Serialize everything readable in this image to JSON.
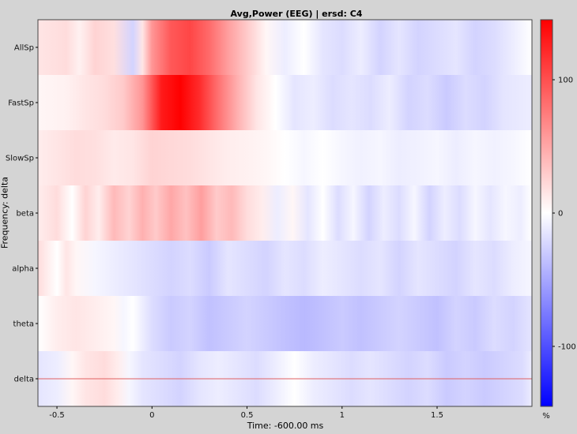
{
  "title": "Avg,Power (EEG) | ersd: C4",
  "chart_data": {
    "type": "heatmap",
    "title": "Avg,Power (EEG) | ersd: C4",
    "xlabel": "Time: -600.00 ms",
    "ylabel": "Frequency: delta",
    "x_ticks": [
      -0.5,
      0,
      0.5,
      1,
      1.5
    ],
    "xlim": [
      -0.6,
      1.999
    ],
    "rows": [
      "AllSp",
      "FastSp",
      "SlowSp",
      "beta",
      "alpha",
      "theta",
      "delta"
    ],
    "colorbar": {
      "ticks": [
        100,
        0,
        -100
      ],
      "unit": "%",
      "clim": [
        -145,
        145
      ]
    },
    "colormap": {
      "negative": "#0000ff",
      "zero": "#ffffff",
      "positive": "#ff0000"
    },
    "cursor_row": "delta",
    "cursor_color": "#e06060",
    "row_profiles": {
      "AllSp": [
        [
          -0.6,
          15
        ],
        [
          -0.45,
          20
        ],
        [
          -0.38,
          8
        ],
        [
          -0.3,
          25
        ],
        [
          -0.2,
          18
        ],
        [
          -0.1,
          -25
        ],
        [
          -0.05,
          15
        ],
        [
          0,
          60
        ],
        [
          0.1,
          95
        ],
        [
          0.2,
          105
        ],
        [
          0.3,
          85
        ],
        [
          0.4,
          55
        ],
        [
          0.5,
          30
        ],
        [
          0.6,
          5
        ],
        [
          0.7,
          -10
        ],
        [
          0.8,
          0
        ],
        [
          0.9,
          -15
        ],
        [
          1.0,
          -20
        ],
        [
          1.1,
          -10
        ],
        [
          1.2,
          -25
        ],
        [
          1.3,
          -15
        ],
        [
          1.4,
          -25
        ],
        [
          1.5,
          -20
        ],
        [
          1.6,
          -15
        ],
        [
          1.7,
          -25
        ],
        [
          1.8,
          -20
        ],
        [
          1.9,
          -10
        ],
        [
          1.999,
          0
        ]
      ],
      "FastSp": [
        [
          -0.6,
          5
        ],
        [
          -0.45,
          8
        ],
        [
          -0.35,
          15
        ],
        [
          -0.25,
          20
        ],
        [
          -0.15,
          30
        ],
        [
          -0.05,
          60
        ],
        [
          0.05,
          130
        ],
        [
          0.15,
          145
        ],
        [
          0.25,
          120
        ],
        [
          0.35,
          80
        ],
        [
          0.45,
          45
        ],
        [
          0.55,
          15
        ],
        [
          0.65,
          0
        ],
        [
          0.75,
          -15
        ],
        [
          0.85,
          -10
        ],
        [
          0.95,
          -20
        ],
        [
          1.05,
          -15
        ],
        [
          1.15,
          -20
        ],
        [
          1.25,
          -10
        ],
        [
          1.35,
          -25
        ],
        [
          1.45,
          -20
        ],
        [
          1.55,
          -30
        ],
        [
          1.65,
          -20
        ],
        [
          1.75,
          -25
        ],
        [
          1.85,
          -15
        ],
        [
          1.999,
          -10
        ]
      ],
      "SlowSp": [
        [
          -0.6,
          10
        ],
        [
          -0.5,
          15
        ],
        [
          -0.4,
          20
        ],
        [
          -0.3,
          18
        ],
        [
          -0.2,
          12
        ],
        [
          -0.1,
          15
        ],
        [
          0,
          25
        ],
        [
          0.1,
          22
        ],
        [
          0.2,
          20
        ],
        [
          0.3,
          15
        ],
        [
          0.4,
          10
        ],
        [
          0.5,
          8
        ],
        [
          0.6,
          5
        ],
        [
          0.7,
          0
        ],
        [
          0.8,
          -5
        ],
        [
          0.9,
          0
        ],
        [
          1.0,
          -5
        ],
        [
          1.1,
          -8
        ],
        [
          1.2,
          -5
        ],
        [
          1.3,
          -10
        ],
        [
          1.4,
          -8
        ],
        [
          1.5,
          -5
        ],
        [
          1.6,
          -10
        ],
        [
          1.7,
          -5
        ],
        [
          1.8,
          -8
        ],
        [
          1.9,
          -5
        ],
        [
          1.999,
          0
        ]
      ],
      "beta": [
        [
          -0.6,
          10
        ],
        [
          -0.5,
          20
        ],
        [
          -0.42,
          0
        ],
        [
          -0.35,
          25
        ],
        [
          -0.28,
          10
        ],
        [
          -0.2,
          40
        ],
        [
          -0.12,
          25
        ],
        [
          -0.05,
          45
        ],
        [
          0.02,
          30
        ],
        [
          0.1,
          50
        ],
        [
          0.18,
          35
        ],
        [
          0.26,
          55
        ],
        [
          0.34,
          30
        ],
        [
          0.42,
          40
        ],
        [
          0.5,
          20
        ],
        [
          0.58,
          10
        ],
        [
          0.66,
          -10
        ],
        [
          0.74,
          5
        ],
        [
          0.82,
          -15
        ],
        [
          0.9,
          0
        ],
        [
          0.98,
          -20
        ],
        [
          1.06,
          -5
        ],
        [
          1.14,
          -25
        ],
        [
          1.22,
          -10
        ],
        [
          1.3,
          -20
        ],
        [
          1.38,
          -5
        ],
        [
          1.46,
          -25
        ],
        [
          1.54,
          -10
        ],
        [
          1.62,
          -20
        ],
        [
          1.7,
          -5
        ],
        [
          1.78,
          -15
        ],
        [
          1.86,
          -5
        ],
        [
          1.94,
          -10
        ],
        [
          1.999,
          0
        ]
      ],
      "alpha": [
        [
          -0.6,
          20
        ],
        [
          -0.55,
          10
        ],
        [
          -0.5,
          0
        ],
        [
          -0.45,
          15
        ],
        [
          -0.4,
          5
        ],
        [
          -0.3,
          -5
        ],
        [
          -0.2,
          -10
        ],
        [
          -0.1,
          -15
        ],
        [
          0,
          -20
        ],
        [
          0.1,
          -25
        ],
        [
          0.2,
          -20
        ],
        [
          0.3,
          -30
        ],
        [
          0.4,
          -15
        ],
        [
          0.5,
          -20
        ],
        [
          0.6,
          -25
        ],
        [
          0.7,
          -15
        ],
        [
          0.8,
          -20
        ],
        [
          0.9,
          -10
        ],
        [
          1.0,
          -15
        ],
        [
          1.1,
          -20
        ],
        [
          1.2,
          -15
        ],
        [
          1.3,
          -25
        ],
        [
          1.4,
          -15
        ],
        [
          1.5,
          -20
        ],
        [
          1.6,
          -25
        ],
        [
          1.7,
          -15
        ],
        [
          1.8,
          -20
        ],
        [
          1.9,
          -10
        ],
        [
          1.999,
          -5
        ]
      ],
      "theta": [
        [
          -0.6,
          0
        ],
        [
          -0.5,
          10
        ],
        [
          -0.4,
          15
        ],
        [
          -0.3,
          10
        ],
        [
          -0.2,
          5
        ],
        [
          -0.15,
          -5
        ],
        [
          -0.1,
          0
        ],
        [
          0,
          -20
        ],
        [
          0.1,
          -30
        ],
        [
          0.2,
          -25
        ],
        [
          0.3,
          -35
        ],
        [
          0.4,
          -30
        ],
        [
          0.5,
          -25
        ],
        [
          0.6,
          -30
        ],
        [
          0.7,
          -35
        ],
        [
          0.8,
          -40
        ],
        [
          0.9,
          -35
        ],
        [
          1.0,
          -30
        ],
        [
          1.1,
          -35
        ],
        [
          1.2,
          -30
        ],
        [
          1.3,
          -25
        ],
        [
          1.4,
          -30
        ],
        [
          1.5,
          -35
        ],
        [
          1.6,
          -25
        ],
        [
          1.7,
          -30
        ],
        [
          1.8,
          -20
        ],
        [
          1.9,
          -25
        ],
        [
          1.999,
          -15
        ]
      ],
      "delta": [
        [
          -0.6,
          -15
        ],
        [
          -0.5,
          -10
        ],
        [
          -0.42,
          5
        ],
        [
          -0.35,
          15
        ],
        [
          -0.25,
          20
        ],
        [
          -0.18,
          10
        ],
        [
          -0.12,
          -5
        ],
        [
          -0.05,
          -15
        ],
        [
          0.05,
          -20
        ],
        [
          0.15,
          -25
        ],
        [
          0.25,
          -15
        ],
        [
          0.35,
          -10
        ],
        [
          0.45,
          -15
        ],
        [
          0.55,
          -20
        ],
        [
          0.65,
          -10
        ],
        [
          0.75,
          0
        ],
        [
          0.85,
          -10
        ],
        [
          0.95,
          -15
        ],
        [
          1.05,
          -20
        ],
        [
          1.15,
          -15
        ],
        [
          1.25,
          -20
        ],
        [
          1.35,
          -25
        ],
        [
          1.45,
          -20
        ],
        [
          1.55,
          -30
        ],
        [
          1.65,
          -25
        ],
        [
          1.75,
          -30
        ],
        [
          1.85,
          -25
        ],
        [
          1.95,
          -20
        ],
        [
          1.999,
          -10
        ]
      ]
    }
  }
}
